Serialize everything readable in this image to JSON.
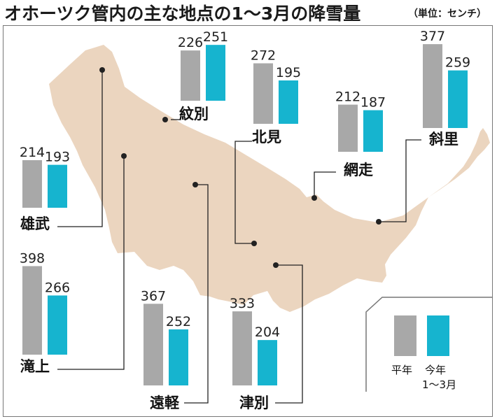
{
  "title": "オホーツク管内の主な地点の1～3月の降雪量",
  "unit": "（単位：センチ）",
  "colors": {
    "heinen": "#a8a8a8",
    "kotoshi": "#16b4cf",
    "land": "#ebd5bf",
    "line": "#222222"
  },
  "legend": {
    "heinen": "平年",
    "kotoshi": "今年",
    "kotoshi_sub": "1～3月"
  },
  "chart_data": {
    "type": "bar",
    "series": [
      {
        "name": "平年",
        "values": [
          226,
          272,
          212,
          377,
          214,
          398,
          367,
          333
        ]
      },
      {
        "name": "今年",
        "values": [
          251,
          195,
          187,
          259,
          193,
          266,
          252,
          204
        ]
      }
    ],
    "categories": [
      "紋別",
      "北見",
      "網走",
      "斜里",
      "雄武",
      "滝上",
      "遠軽",
      "津別"
    ]
  }
}
